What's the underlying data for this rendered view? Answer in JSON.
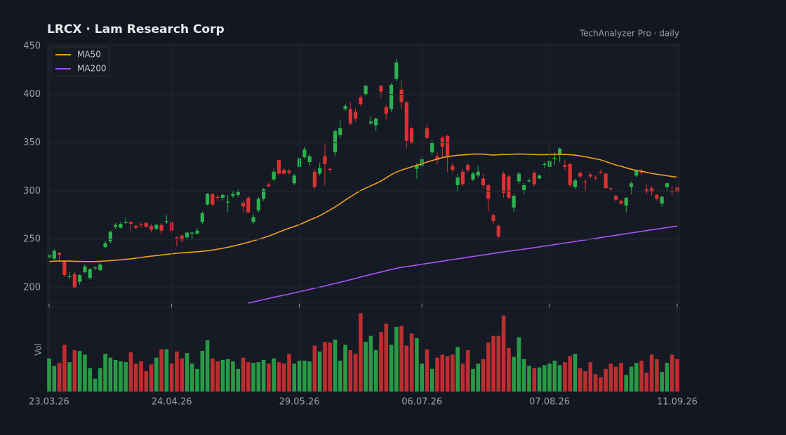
{
  "chart_data": {
    "type": "candlestick",
    "title": "LRCX  ·  Lam Research Corp",
    "subtitle": "TechAnalyzer Pro · daily",
    "volume_label": "Vol",
    "up_color": "#2bb24c",
    "down_color": "#d93232",
    "grid": true,
    "legend": "top-left",
    "ylim": [
      184,
      452
    ],
    "yticks": [
      200,
      250,
      300,
      350,
      400,
      450
    ],
    "vol_ylim": [
      0,
      110
    ],
    "categories": [
      "23.03.26",
      null,
      null,
      null,
      null,
      null,
      null,
      null,
      null,
      null,
      null,
      null,
      null,
      null,
      null,
      null,
      null,
      null,
      null,
      null,
      null,
      null,
      null,
      null,
      "24.04.26",
      null,
      null,
      null,
      null,
      null,
      null,
      null,
      null,
      null,
      null,
      null,
      null,
      null,
      null,
      null,
      null,
      null,
      null,
      null,
      null,
      null,
      null,
      null,
      null,
      "29.05.26",
      null,
      null,
      null,
      null,
      null,
      null,
      null,
      null,
      null,
      null,
      null,
      null,
      null,
      null,
      null,
      null,
      null,
      null,
      null,
      null,
      null,
      null,
      null,
      "06.07.26",
      null,
      null,
      null,
      null,
      null,
      null,
      null,
      null,
      null,
      null,
      null,
      null,
      null,
      null,
      null,
      null,
      null,
      null,
      null,
      null,
      null,
      null,
      null,
      null,
      "07.08.26",
      null,
      null,
      null,
      null,
      null,
      null,
      null,
      null,
      null,
      null,
      null,
      null,
      null,
      null,
      null,
      null,
      null,
      null,
      null,
      null,
      null,
      null,
      null,
      null,
      "11.09.26"
    ],
    "open": [
      231,
      230,
      236,
      227,
      211,
      214,
      206,
      216,
      210,
      220,
      218,
      242,
      248,
      263,
      262,
      267,
      268,
      264,
      266,
      267,
      264,
      261,
      265,
      268,
      268,
      252,
      254,
      252,
      256,
      256,
      268,
      286,
      297,
      294,
      293,
      288,
      295,
      296,
      288,
      293,
      268,
      280,
      292,
      307,
      312,
      332,
      322,
      321,
      308,
      325,
      335,
      330,
      320,
      318,
      336,
      323,
      340,
      358,
      385,
      385,
      382,
      397,
      400,
      370,
      368,
      409,
      387,
      385,
      416,
      405,
      392,
      365,
      323,
      326,
      365,
      340,
      336,
      355,
      357,
      326,
      306,
      320,
      327,
      312,
      316,
      313,
      306,
      275,
      264,
      318,
      315,
      283,
      310,
      301,
      310,
      319,
      313,
      327,
      325,
      333,
      338,
      327,
      328,
      304,
      319,
      310,
      317,
      314,
      320,
      318,
      303,
      295,
      290,
      285,
      304,
      316,
      321,
      302,
      303,
      296,
      287,
      304,
      300,
      304
    ],
    "high": [
      240,
      240,
      237,
      228,
      216,
      216,
      214,
      224,
      220,
      222,
      226,
      248,
      259,
      267,
      268,
      273,
      269,
      265,
      267,
      268,
      266,
      266,
      267,
      275,
      269,
      253,
      255,
      258,
      258,
      262,
      279,
      298,
      298,
      296,
      297,
      296,
      300,
      302,
      290,
      295,
      276,
      294,
      303,
      309,
      323,
      333,
      324,
      323,
      318,
      336,
      346,
      338,
      322,
      329,
      348,
      324,
      364,
      373,
      390,
      392,
      386,
      399,
      410,
      378,
      376,
      410,
      389,
      412,
      437,
      415,
      393,
      366,
      329,
      336,
      370,
      353,
      340,
      357,
      358,
      329,
      318,
      323,
      329,
      320,
      326,
      318,
      308,
      277,
      265,
      320,
      317,
      297,
      320,
      308,
      313,
      320,
      317,
      330,
      346,
      340,
      345,
      332,
      329,
      313,
      320,
      312,
      319,
      316,
      322,
      319,
      304,
      296,
      291,
      294,
      310,
      322,
      323,
      307,
      305,
      297,
      295,
      309,
      305,
      306
    ],
    "low": [
      229,
      229,
      228,
      211,
      209,
      199,
      203,
      215,
      208,
      218,
      217,
      241,
      246,
      261,
      261,
      266,
      258,
      260,
      262,
      262,
      257,
      259,
      255,
      266,
      258,
      243,
      247,
      249,
      250,
      255,
      266,
      285,
      284,
      290,
      290,
      278,
      293,
      294,
      278,
      277,
      266,
      278,
      290,
      304,
      310,
      316,
      317,
      317,
      306,
      322,
      333,
      326,
      302,
      316,
      306,
      320,
      336,
      355,
      383,
      368,
      372,
      388,
      398,
      368,
      362,
      397,
      374,
      382,
      414,
      385,
      344,
      348,
      313,
      323,
      354,
      337,
      328,
      335,
      320,
      319,
      299,
      305,
      319,
      310,
      314,
      303,
      279,
      266,
      251,
      293,
      292,
      278,
      307,
      297,
      309,
      305,
      312,
      324,
      322,
      327,
      330,
      322,
      304,
      302,
      313,
      300,
      313,
      311,
      318,
      302,
      300,
      289,
      286,
      278,
      297,
      314,
      316,
      297,
      295,
      290,
      284,
      300,
      296,
      296
    ],
    "close": [
      234,
      238,
      234,
      213,
      212,
      200,
      213,
      222,
      219,
      221,
      224,
      246,
      258,
      265,
      266,
      268,
      266,
      262,
      265,
      263,
      260,
      265,
      259,
      269,
      259,
      251,
      249,
      257,
      257,
      259,
      277,
      297,
      286,
      293,
      296,
      289,
      297,
      299,
      284,
      278,
      273,
      292,
      302,
      305,
      320,
      318,
      318,
      319,
      316,
      334,
      343,
      336,
      304,
      324,
      328,
      322,
      362,
      365,
      388,
      370,
      375,
      390,
      409,
      372,
      375,
      403,
      380,
      410,
      433,
      392,
      352,
      350,
      326,
      333,
      355,
      350,
      332,
      346,
      335,
      322,
      314,
      307,
      322,
      318,
      320,
      306,
      292,
      269,
      253,
      298,
      293,
      295,
      318,
      306,
      311,
      307,
      316,
      328,
      331,
      334,
      344,
      325,
      306,
      311,
      315,
      309,
      315,
      313,
      319,
      303,
      302,
      291,
      287,
      293,
      308,
      321,
      319,
      299,
      299,
      292,
      294,
      308,
      299,
      299
    ],
    "volume": [
      44,
      34,
      38,
      62,
      39,
      55,
      54,
      49,
      31,
      17,
      31,
      50,
      45,
      42,
      40,
      39,
      52,
      37,
      40,
      27,
      36,
      45,
      56,
      56,
      37,
      53,
      44,
      51,
      37,
      30,
      54,
      68,
      44,
      40,
      42,
      43,
      40,
      30,
      45,
      39,
      38,
      39,
      42,
      37,
      44,
      39,
      37,
      50,
      37,
      41,
      41,
      40,
      61,
      53,
      66,
      65,
      69,
      41,
      62,
      55,
      50,
      104,
      66,
      74,
      55,
      79,
      90,
      62,
      86,
      87,
      61,
      77,
      71,
      37,
      56,
      30,
      45,
      49,
      47,
      49,
      59,
      37,
      55,
      30,
      37,
      43,
      65,
      74,
      74,
      101,
      58,
      46,
      72,
      43,
      34,
      31,
      32,
      35,
      37,
      41,
      35,
      39,
      47,
      50,
      31,
      27,
      39,
      23,
      19,
      30,
      37,
      33,
      38,
      22,
      33,
      38,
      41,
      25,
      49,
      43,
      26,
      38,
      49,
      43
    ],
    "series": [
      {
        "name": "MA50",
        "color": "#f0a020",
        "values": [
          227,
          227.5,
          227.5,
          227.5,
          227.5,
          227.3,
          227.2,
          227,
          227,
          227,
          227.3,
          227.6,
          228,
          228.4,
          228.8,
          229.3,
          229.8,
          230.5,
          231.2,
          232,
          232.6,
          233.2,
          233.8,
          234.4,
          235,
          235.6,
          236,
          236.4,
          236.8,
          237.2,
          237.6,
          238.2,
          239,
          239.8,
          240.7,
          241.8,
          243,
          244.3,
          245.6,
          247,
          248.6,
          250,
          251.6,
          253.4,
          255.4,
          257.6,
          259.6,
          261.6,
          263.4,
          265.2,
          267.5,
          270,
          272,
          274.6,
          277.4,
          280.4,
          283.6,
          287,
          290.6,
          294,
          297.4,
          300.5,
          303,
          305.4,
          307.8,
          310.4,
          313.6,
          317,
          319.6,
          321.6,
          323.4,
          325,
          326.6,
          328.2,
          330,
          331.6,
          333.2,
          334.6,
          335.6,
          336.4,
          337,
          337.4,
          337.8,
          338.2,
          338.4,
          338.2,
          337.6,
          337.2,
          337.6,
          337.8,
          338,
          338.2,
          338.4,
          338.2,
          338,
          337.8,
          337.6,
          337.6,
          337.8,
          338,
          338,
          337.8,
          337.6,
          337.2,
          336.4,
          335.4,
          334.4,
          333.4,
          332.2,
          330.6,
          328.6,
          327,
          325.6,
          324,
          322.6,
          321.4,
          320.6,
          319.4,
          318.2,
          317.4,
          316.6,
          315.8,
          315,
          314.4
        ]
      },
      {
        "name": "MA200",
        "color": "#a855f7",
        "values": [
          null,
          null,
          null,
          null,
          null,
          null,
          null,
          null,
          null,
          null,
          null,
          null,
          null,
          null,
          null,
          null,
          null,
          null,
          null,
          null,
          null,
          null,
          null,
          null,
          null,
          null,
          null,
          null,
          null,
          null,
          null,
          null,
          null,
          null,
          null,
          null,
          null,
          null,
          null,
          184,
          185.2,
          186.4,
          187.6,
          188.8,
          190,
          191.2,
          192.3,
          193.4,
          194.6,
          195.8,
          197,
          198.2,
          199.3,
          200.5,
          201.7,
          203,
          204.3,
          205.6,
          206.9,
          208.2,
          209.6,
          211,
          212.3,
          213.6,
          214.9,
          216.2,
          217.5,
          218.8,
          220,
          221,
          221.8,
          222.6,
          223.4,
          224.2,
          225,
          225.8,
          226.6,
          227.4,
          228.2,
          229,
          229.8,
          230.6,
          231.4,
          232.2,
          233,
          233.8,
          234.6,
          235.4,
          236.2,
          237,
          237.8,
          238.5,
          239.2,
          239.8,
          240.6,
          241.4,
          242.2,
          243,
          243.8,
          244.6,
          245.4,
          246.2,
          247,
          247.8,
          248.6,
          249.4,
          250.2,
          251,
          251.8,
          252.6,
          253.4,
          254.2,
          255,
          255.8,
          256.6,
          257.4,
          258.2,
          259,
          259.8,
          260.6,
          261.4,
          262.2,
          263,
          263.8
        ]
      }
    ]
  }
}
